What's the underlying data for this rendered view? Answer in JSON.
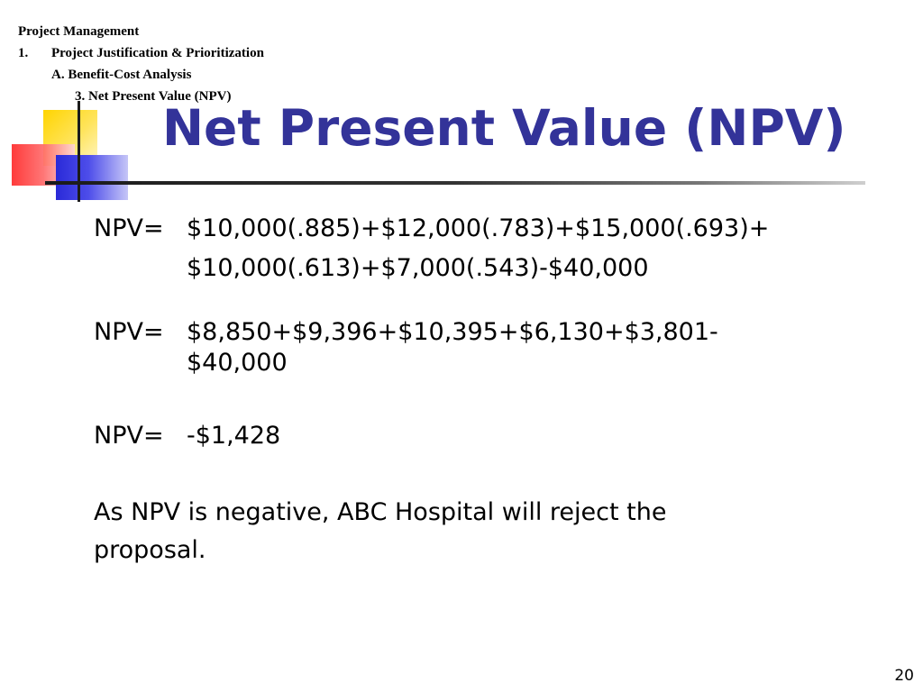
{
  "breadcrumb": {
    "level1": "Project Management",
    "level2_num": "1.",
    "level2": "Project Justification & Prioritization",
    "level3": "A. Benefit-Cost Analysis",
    "level4": "3. Net Present Value (NPV)"
  },
  "title": "Net Present Value (NPV)",
  "equations": [
    {
      "label": "NPV=",
      "line1": "$10,000(.885)+$12,000(.783)+$15,000(.693)+",
      "line2": "$10,000(.613)+$7,000(.543)-$40,000"
    },
    {
      "label": "NPV=",
      "line1": "$8,850+$9,396+$10,395+$6,130+$3,801-",
      "line2": "$40,000"
    },
    {
      "label": "NPV=",
      "line1": "-$1,428"
    }
  ],
  "conclusion": "As NPV is negative, ABC Hospital will reject the proposal.",
  "page_number": "20",
  "colors": {
    "title": "#333399",
    "accent_yellow": "#ffd400",
    "accent_red": "#ff2a2a",
    "accent_blue": "#2a2ad8"
  }
}
